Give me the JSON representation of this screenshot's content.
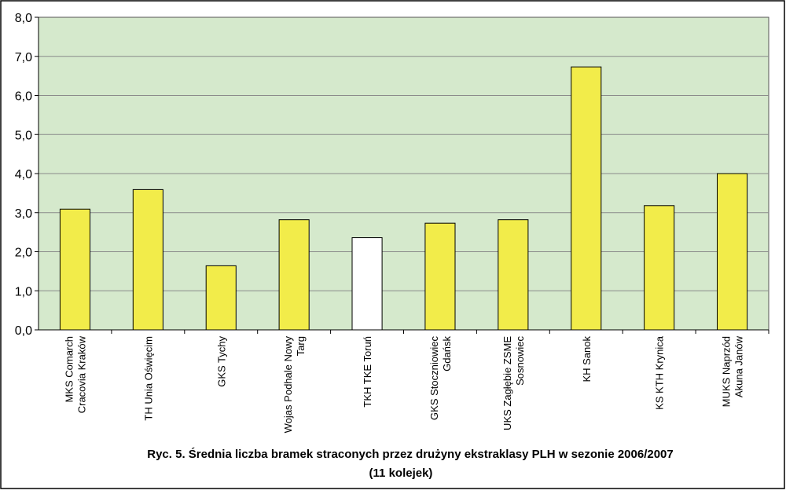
{
  "chart_data": {
    "type": "bar",
    "title": "Ryc. 5. Średnia liczba bramek straconych przez drużyny ekstraklasy PLH w sezonie 2006/2007",
    "subtitle": "(11 kolejek)",
    "xlabel": "",
    "ylabel": "",
    "ylim": [
      0,
      8
    ],
    "yticks": [
      "0,0",
      "1,0",
      "2,0",
      "3,0",
      "4,0",
      "5,0",
      "6,0",
      "7,0",
      "8,0"
    ],
    "grid": true,
    "legend": "none",
    "categories": [
      [
        "MKS Comarch",
        "Cracovia Kraków"
      ],
      [
        "TH Unia Oświęcim"
      ],
      [
        "GKS Tychy"
      ],
      [
        "Wojas Podhale Nowy",
        "Targ"
      ],
      [
        "TKH TKE Toruń"
      ],
      [
        "GKS Stoczniowiec",
        "Gdańsk"
      ],
      [
        "UKS Zagłębie ZSME",
        "Sosnowiec"
      ],
      [
        "KH Sanok"
      ],
      [
        "KS KTH Krynica"
      ],
      [
        "MUKS Naprzód",
        "Akuna Janów"
      ]
    ],
    "values": [
      3.09,
      3.59,
      1.64,
      2.82,
      2.36,
      2.73,
      2.82,
      6.73,
      3.18,
      4.0
    ],
    "bar_colors": [
      "#f2ec4a",
      "#f2ec4a",
      "#f2ec4a",
      "#f2ec4a",
      "#ffffff",
      "#f2ec4a",
      "#f2ec4a",
      "#f2ec4a",
      "#f2ec4a",
      "#f2ec4a"
    ],
    "colors": {
      "plot_background": "#d5e9cc",
      "gridline": "#8a8a8a",
      "bar_highlight": "#f2ec4a",
      "bar_outline": "#000000"
    }
  }
}
